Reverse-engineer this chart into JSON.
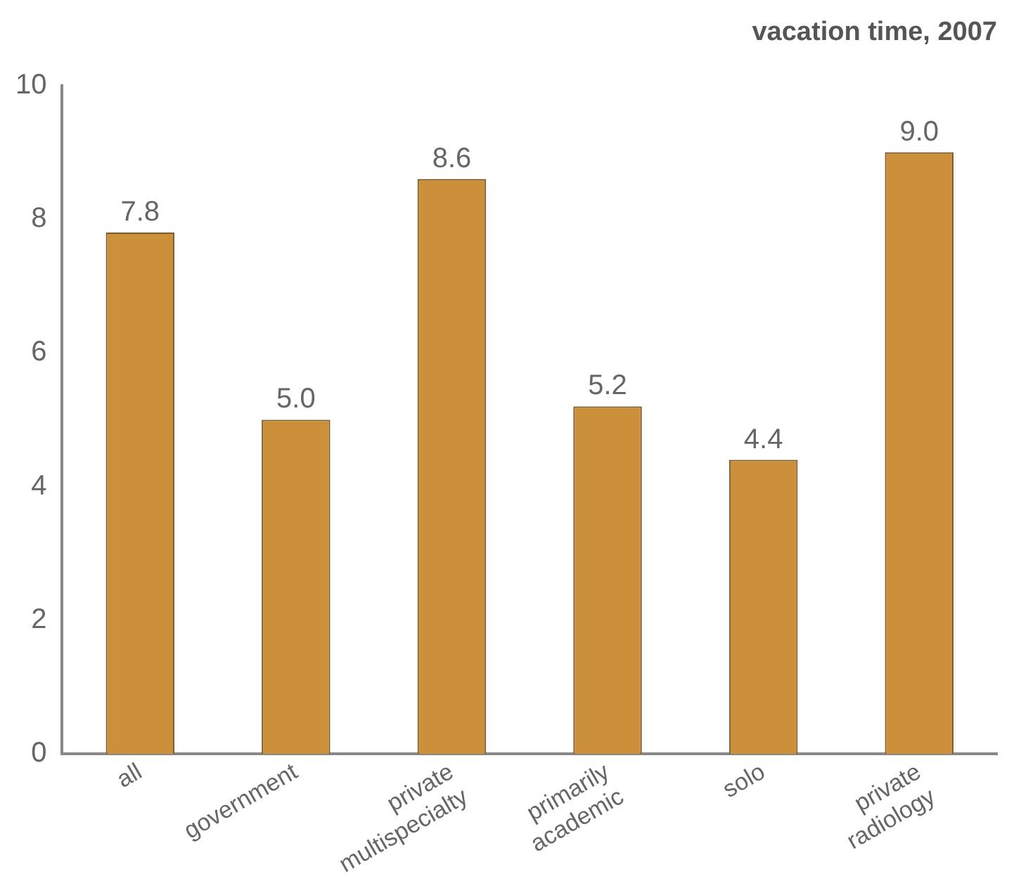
{
  "chart_data": {
    "type": "bar",
    "title": "vacation time, 2007",
    "categories": [
      "all",
      "government",
      "private multispecialty",
      "primarily academic",
      "solo",
      "private radiology"
    ],
    "values": [
      7.8,
      5.0,
      8.6,
      5.2,
      4.4,
      9.0
    ],
    "color": "#cc8f3a",
    "value_labels": [
      "7.8",
      "5.0",
      "8.6",
      "5.2",
      "4.4",
      "9.0"
    ],
    "ylim": [
      0,
      10
    ],
    "yticks": [
      0,
      2,
      4,
      6,
      8,
      10
    ],
    "grid": false,
    "legend": false
  }
}
